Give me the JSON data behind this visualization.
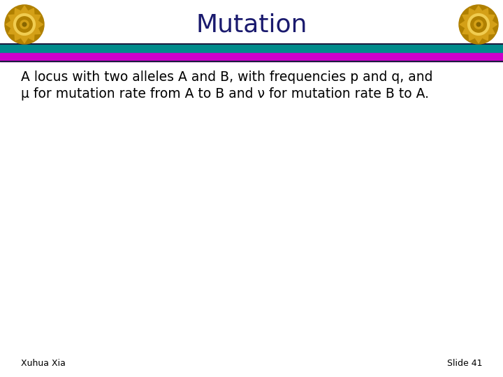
{
  "title": "Mutation",
  "title_color": "#1a1a6e",
  "title_fontsize": 26,
  "bg_color": "#ffffff",
  "teal_color": "#008b8b",
  "teal_dark_color": "#006060",
  "magenta_color": "#cc00cc",
  "magenta_dark_color": "#800080",
  "dark_line_color": "#1a1a3e",
  "body_text_line1": "A locus with two alleles A and B, with frequencies p and q, and",
  "body_text_line2": "μ for mutation rate from A to B and ν for mutation rate B to A.",
  "body_fontsize": 13.5,
  "body_color": "#000000",
  "footer_left": "Xuhua Xia",
  "footer_right": "Slide 41",
  "footer_fontsize": 9,
  "footer_color": "#000000",
  "emblem_gold1": "#d4a017",
  "emblem_gold2": "#f0cc50",
  "emblem_gold3": "#b08000",
  "emblem_gold4": "#886600"
}
